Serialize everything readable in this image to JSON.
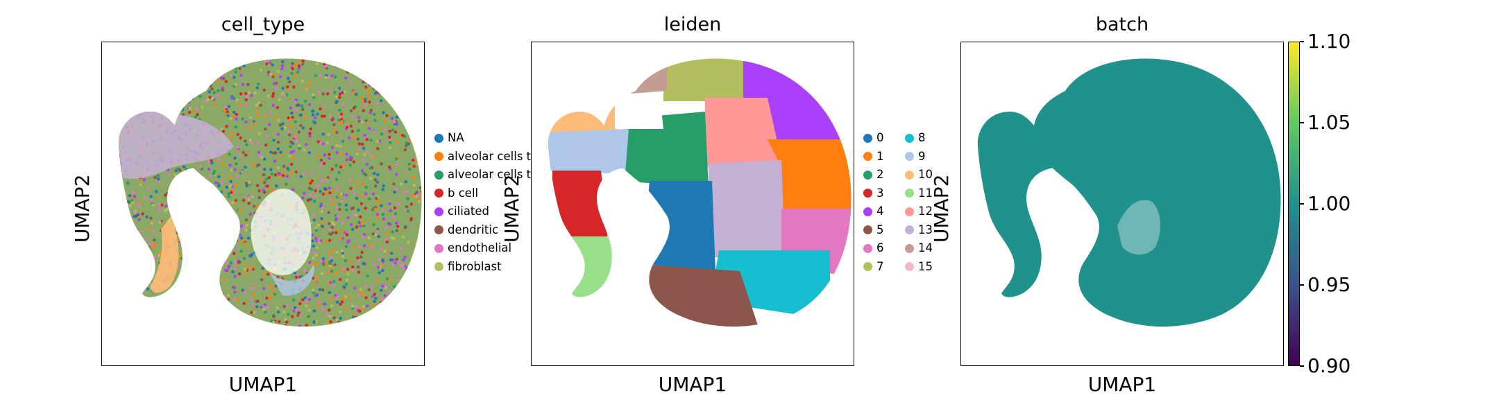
{
  "chart_data": [
    {
      "type": "scatter",
      "title": "cell_type",
      "xlabel": "UMAP1",
      "ylabel": "UMAP2",
      "legend": "right",
      "legend_entries": [
        {
          "label": "NA",
          "color": "#1f77b4"
        },
        {
          "label": "alveolar cells t",
          "color": "#ff7f0e"
        },
        {
          "label": "alveolar cells t",
          "color": "#279e68"
        },
        {
          "label": "b cell",
          "color": "#d62728"
        },
        {
          "label": "ciliated",
          "color": "#aa40fc"
        },
        {
          "label": "dendritic",
          "color": "#8c564b"
        },
        {
          "label": "endothelial",
          "color": "#e377c2"
        },
        {
          "label": "fibroblast",
          "color": "#b5bd61"
        }
      ]
    },
    {
      "type": "scatter",
      "title": "leiden",
      "xlabel": "UMAP1",
      "ylabel": "UMAP2",
      "legend": "right",
      "legend_entries": [
        {
          "label": "0",
          "color": "#1f77b4"
        },
        {
          "label": "1",
          "color": "#ff7f0e"
        },
        {
          "label": "2",
          "color": "#279e68"
        },
        {
          "label": "3",
          "color": "#d62728"
        },
        {
          "label": "4",
          "color": "#aa40fc"
        },
        {
          "label": "5",
          "color": "#8c564b"
        },
        {
          "label": "6",
          "color": "#e377c2"
        },
        {
          "label": "7",
          "color": "#b5bd61"
        },
        {
          "label": "8",
          "color": "#17becf"
        },
        {
          "label": "9",
          "color": "#aec7e8"
        },
        {
          "label": "10",
          "color": "#ffbb78"
        },
        {
          "label": "11",
          "color": "#98df8a"
        },
        {
          "label": "12",
          "color": "#ff9896"
        },
        {
          "label": "13",
          "color": "#c5b0d5"
        },
        {
          "label": "14",
          "color": "#c49c94"
        },
        {
          "label": "15",
          "color": "#f7b6d2"
        }
      ]
    },
    {
      "type": "scatter",
      "title": "batch",
      "xlabel": "UMAP1",
      "ylabel": "UMAP2",
      "point_color": "#21918c",
      "colorbar": {
        "colormap": "viridis",
        "range": [
          0.9,
          1.1
        ],
        "ticks": [
          "1.10",
          "1.05",
          "1.00",
          "0.95",
          "0.90"
        ]
      }
    }
  ]
}
